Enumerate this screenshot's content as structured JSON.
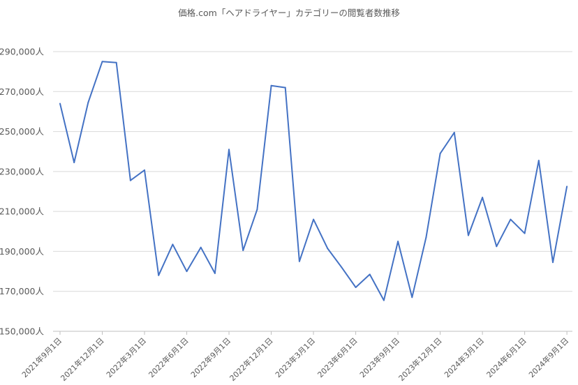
{
  "chart_data": {
    "type": "line",
    "title": "価格.com「ヘアドライヤー」カテゴリーの閲覧者数推移",
    "xlabel": "",
    "ylabel": "",
    "ylim": [
      150000,
      290000
    ],
    "y_ticks": [
      {
        "value": 150000,
        "label": "150,000人"
      },
      {
        "value": 170000,
        "label": "170,000人"
      },
      {
        "value": 190000,
        "label": "190,000人"
      },
      {
        "value": 210000,
        "label": "210,000人"
      },
      {
        "value": 230000,
        "label": "230,000人"
      },
      {
        "value": 250000,
        "label": "250,000人"
      },
      {
        "value": 270000,
        "label": "270,000人"
      },
      {
        "value": 290000,
        "label": "290,000人"
      }
    ],
    "x_ticks": [
      {
        "index": 0,
        "label": "2021年9月1日"
      },
      {
        "index": 3,
        "label": "2021年12月1日"
      },
      {
        "index": 6,
        "label": "2022年3月1日"
      },
      {
        "index": 9,
        "label": "2022年6月1日"
      },
      {
        "index": 12,
        "label": "2022年9月1日"
      },
      {
        "index": 15,
        "label": "2022年12月1日"
      },
      {
        "index": 18,
        "label": "2023年3月1日"
      },
      {
        "index": 21,
        "label": "2023年6月1日"
      },
      {
        "index": 24,
        "label": "2023年9月1日"
      },
      {
        "index": 27,
        "label": "2023年12月1日"
      },
      {
        "index": 30,
        "label": "2024年3月1日"
      },
      {
        "index": 33,
        "label": "2024年6月1日"
      },
      {
        "index": 36,
        "label": "2024年9月1日"
      }
    ],
    "grid": true,
    "legend": "none",
    "series": [
      {
        "color": "#4472c4",
        "values": [
          264000,
          234500,
          264500,
          285000,
          284500,
          225500,
          230700,
          178000,
          193500,
          180000,
          192000,
          179000,
          241000,
          190500,
          211000,
          273000,
          272000,
          185000,
          206000,
          191500,
          182000,
          172000,
          178500,
          165500,
          195000,
          167000,
          197000,
          239000,
          249500,
          198000,
          217000,
          192500,
          206000,
          199000,
          235500,
          184500,
          222500
        ]
      }
    ]
  }
}
